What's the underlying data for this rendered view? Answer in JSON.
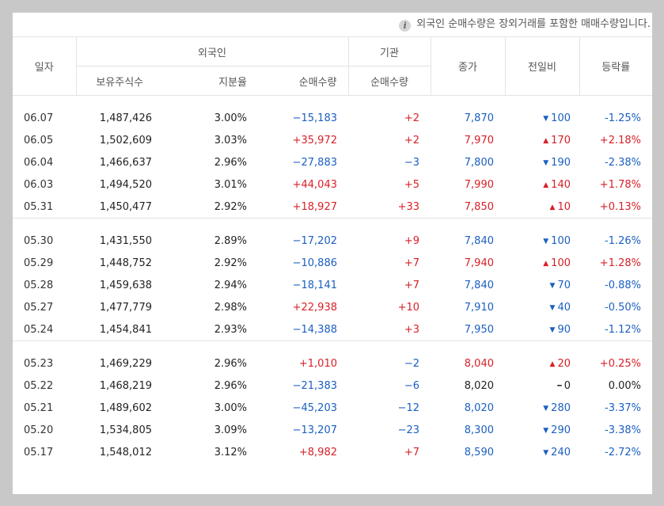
{
  "notice": {
    "icon": "info-icon",
    "text": "외국인 순매수량은 장외거래를 포함한 매매수량입니다."
  },
  "headers": {
    "date": "일자",
    "foreign_group": "외국인",
    "institution_group": "기관",
    "holdings": "보유주식수",
    "share_ratio": "지분율",
    "foreign_net": "순매수량",
    "inst_net": "순매수량",
    "close": "종가",
    "change": "전일비",
    "rate": "등락률"
  },
  "colors": {
    "up": "#d81f26",
    "down": "#1b5fc1",
    "flat": "#222222"
  },
  "groups": [
    [
      {
        "date": "06.07",
        "holdings": "1,487,426",
        "ratio": "3.00%",
        "foreign_net": "−15,183",
        "inst_net": "+2",
        "close": "7,870",
        "change": "100",
        "dir": "down",
        "rate": "-1.25%"
      },
      {
        "date": "06.05",
        "holdings": "1,502,609",
        "ratio": "3.03%",
        "foreign_net": "+35,972",
        "inst_net": "+2",
        "close": "7,970",
        "change": "170",
        "dir": "up",
        "rate": "+2.18%"
      },
      {
        "date": "06.04",
        "holdings": "1,466,637",
        "ratio": "2.96%",
        "foreign_net": "−27,883",
        "inst_net": "−3",
        "close": "7,800",
        "change": "190",
        "dir": "down",
        "rate": "-2.38%"
      },
      {
        "date": "06.03",
        "holdings": "1,494,520",
        "ratio": "3.01%",
        "foreign_net": "+44,043",
        "inst_net": "+5",
        "close": "7,990",
        "change": "140",
        "dir": "up",
        "rate": "+1.78%"
      },
      {
        "date": "05.31",
        "holdings": "1,450,477",
        "ratio": "2.92%",
        "foreign_net": "+18,927",
        "inst_net": "+33",
        "close": "7,850",
        "change": "10",
        "dir": "up",
        "rate": "+0.13%"
      }
    ],
    [
      {
        "date": "05.30",
        "holdings": "1,431,550",
        "ratio": "2.89%",
        "foreign_net": "−17,202",
        "inst_net": "+9",
        "close": "7,840",
        "change": "100",
        "dir": "down",
        "rate": "-1.26%"
      },
      {
        "date": "05.29",
        "holdings": "1,448,752",
        "ratio": "2.92%",
        "foreign_net": "−10,886",
        "inst_net": "+7",
        "close": "7,940",
        "change": "100",
        "dir": "up",
        "rate": "+1.28%"
      },
      {
        "date": "05.28",
        "holdings": "1,459,638",
        "ratio": "2.94%",
        "foreign_net": "−18,141",
        "inst_net": "+7",
        "close": "7,840",
        "change": "70",
        "dir": "down",
        "rate": "-0.88%"
      },
      {
        "date": "05.27",
        "holdings": "1,477,779",
        "ratio": "2.98%",
        "foreign_net": "+22,938",
        "inst_net": "+10",
        "close": "7,910",
        "change": "40",
        "dir": "down",
        "rate": "-0.50%"
      },
      {
        "date": "05.24",
        "holdings": "1,454,841",
        "ratio": "2.93%",
        "foreign_net": "−14,388",
        "inst_net": "+3",
        "close": "7,950",
        "change": "90",
        "dir": "down",
        "rate": "-1.12%"
      }
    ],
    [
      {
        "date": "05.23",
        "holdings": "1,469,229",
        "ratio": "2.96%",
        "foreign_net": "+1,010",
        "inst_net": "−2",
        "close": "8,040",
        "change": "20",
        "dir": "up",
        "rate": "+0.25%"
      },
      {
        "date": "05.22",
        "holdings": "1,468,219",
        "ratio": "2.96%",
        "foreign_net": "−21,383",
        "inst_net": "−6",
        "close": "8,020",
        "change": "0",
        "dir": "flat",
        "rate": "0.00%"
      },
      {
        "date": "05.21",
        "holdings": "1,489,602",
        "ratio": "3.00%",
        "foreign_net": "−45,203",
        "inst_net": "−12",
        "close": "8,020",
        "change": "280",
        "dir": "down",
        "rate": "-3.37%"
      },
      {
        "date": "05.20",
        "holdings": "1,534,805",
        "ratio": "3.09%",
        "foreign_net": "−13,207",
        "inst_net": "−23",
        "close": "8,300",
        "change": "290",
        "dir": "down",
        "rate": "-3.38%"
      },
      {
        "date": "05.17",
        "holdings": "1,548,012",
        "ratio": "3.12%",
        "foreign_net": "+8,982",
        "inst_net": "+7",
        "close": "8,590",
        "change": "240",
        "dir": "down",
        "rate": "-2.72%"
      }
    ]
  ]
}
